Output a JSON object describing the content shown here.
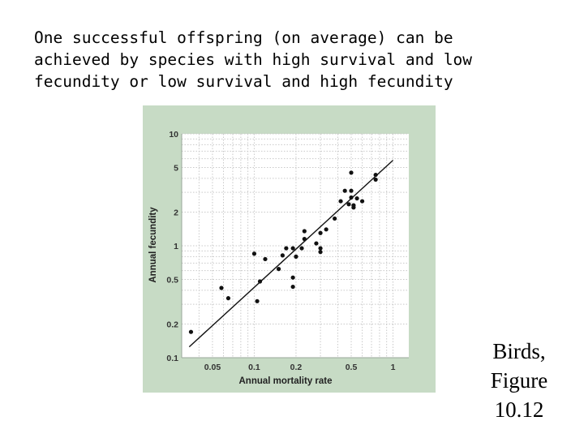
{
  "heading": {
    "lines": [
      "One successful offspring (on average) can be",
      "achieved by species with high survival and low",
      "fecundity or low survival and high fecundity"
    ]
  },
  "caption": {
    "lines": [
      "Birds,",
      "Figure",
      "10.12"
    ]
  },
  "colors": {
    "panel": "#c7dbc5",
    "plot_bg": "#ffffff",
    "grid": "#c9c9c9",
    "marks": "#111111"
  },
  "chart_data": {
    "type": "scatter",
    "xscale": "log",
    "yscale": "log",
    "xlabel": "Annual mortality rate",
    "ylabel": "Annual fecundity",
    "xlim": [
      0.03,
      1.3
    ],
    "ylim": [
      0.1,
      10
    ],
    "xticks": [
      {
        "value": 0.05,
        "label": "0.05"
      },
      {
        "value": 0.1,
        "label": "0.1"
      },
      {
        "value": 0.2,
        "label": "0.2"
      },
      {
        "value": 0.5,
        "label": "0.5"
      },
      {
        "value": 1,
        "label": "1"
      }
    ],
    "yticks": [
      {
        "value": 0.1,
        "label": "0.1"
      },
      {
        "value": 0.2,
        "label": "0.2"
      },
      {
        "value": 0.5,
        "label": "0.5"
      },
      {
        "value": 1,
        "label": "1"
      },
      {
        "value": 2,
        "label": "2"
      },
      {
        "value": 5,
        "label": "5"
      },
      {
        "value": 10,
        "label": "10"
      }
    ],
    "grid": true,
    "points": [
      {
        "x": 0.035,
        "y": 0.17
      },
      {
        "x": 0.058,
        "y": 0.42
      },
      {
        "x": 0.065,
        "y": 0.34
      },
      {
        "x": 0.1,
        "y": 0.85
      },
      {
        "x": 0.105,
        "y": 0.32
      },
      {
        "x": 0.11,
        "y": 0.48
      },
      {
        "x": 0.12,
        "y": 0.76
      },
      {
        "x": 0.15,
        "y": 0.62
      },
      {
        "x": 0.16,
        "y": 0.82
      },
      {
        "x": 0.17,
        "y": 0.95
      },
      {
        "x": 0.19,
        "y": 0.95
      },
      {
        "x": 0.19,
        "y": 0.52
      },
      {
        "x": 0.19,
        "y": 0.43
      },
      {
        "x": 0.2,
        "y": 0.8
      },
      {
        "x": 0.22,
        "y": 0.95
      },
      {
        "x": 0.23,
        "y": 1.15
      },
      {
        "x": 0.23,
        "y": 1.35
      },
      {
        "x": 0.28,
        "y": 1.05
      },
      {
        "x": 0.3,
        "y": 0.95
      },
      {
        "x": 0.3,
        "y": 0.88
      },
      {
        "x": 0.3,
        "y": 1.3
      },
      {
        "x": 0.33,
        "y": 1.4
      },
      {
        "x": 0.38,
        "y": 1.75
      },
      {
        "x": 0.42,
        "y": 2.5
      },
      {
        "x": 0.45,
        "y": 3.1
      },
      {
        "x": 0.48,
        "y": 2.35
      },
      {
        "x": 0.5,
        "y": 4.5
      },
      {
        "x": 0.5,
        "y": 2.7
      },
      {
        "x": 0.5,
        "y": 3.1
      },
      {
        "x": 0.52,
        "y": 2.2
      },
      {
        "x": 0.52,
        "y": 2.3
      },
      {
        "x": 0.55,
        "y": 2.65
      },
      {
        "x": 0.6,
        "y": 2.5
      },
      {
        "x": 0.75,
        "y": 4.3
      },
      {
        "x": 0.75,
        "y": 3.9
      }
    ],
    "trendline": {
      "x": [
        0.034,
        1.0
      ],
      "y": [
        0.125,
        5.8
      ]
    }
  }
}
